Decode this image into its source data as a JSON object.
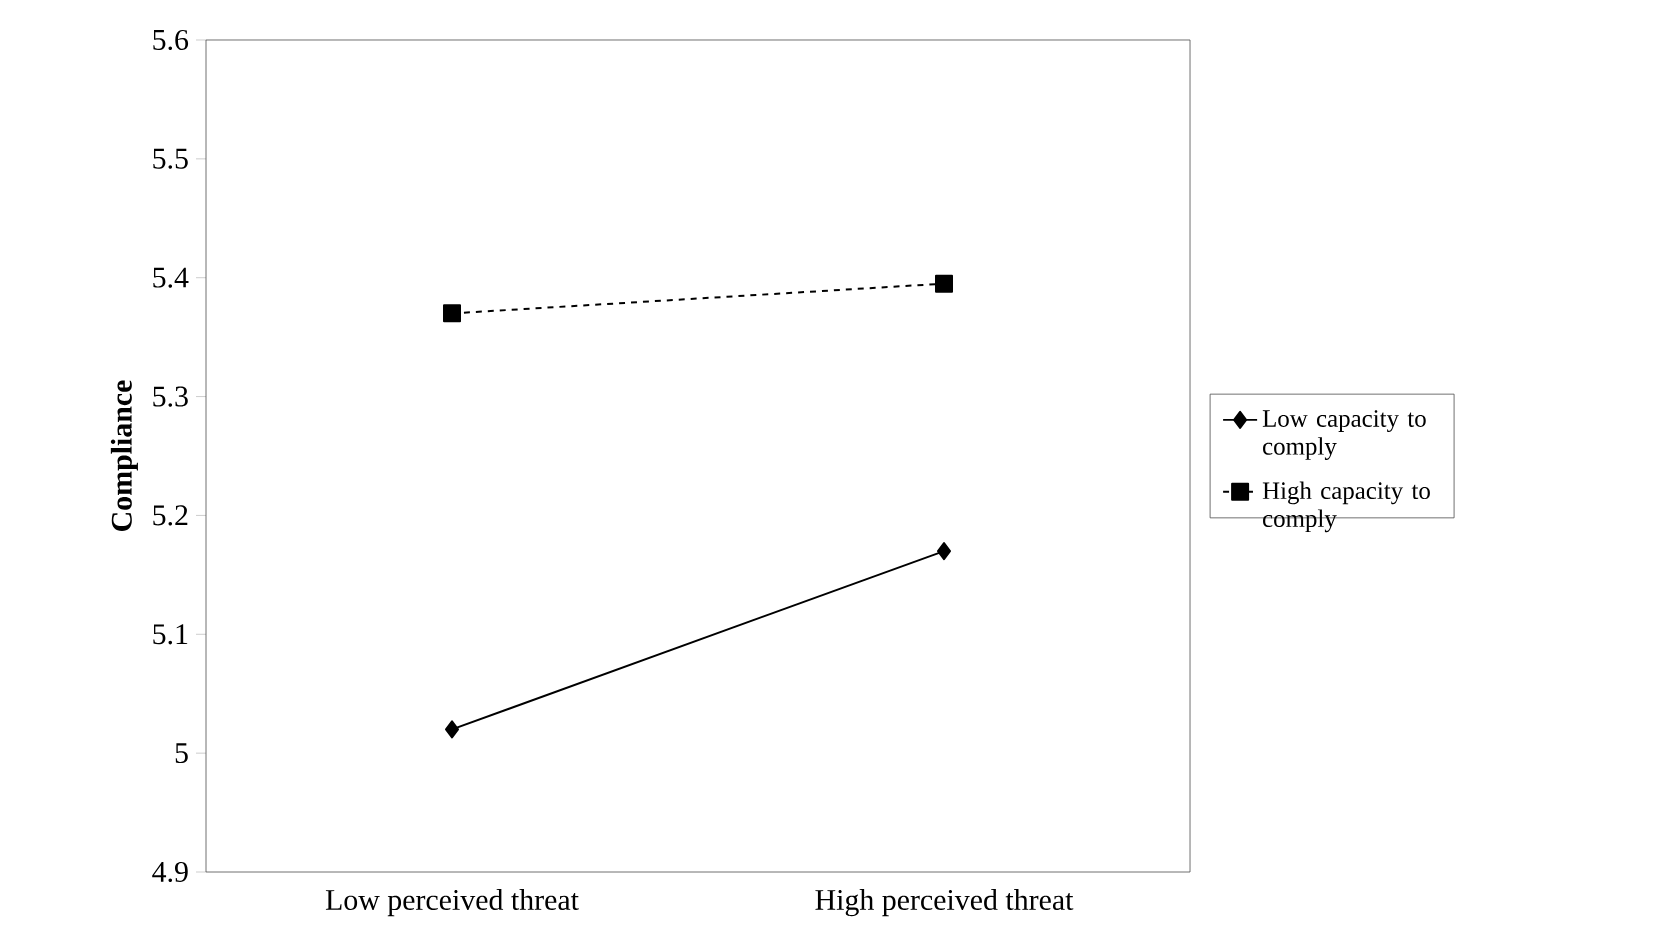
{
  "chart_data": {
    "type": "line",
    "ylabel": "**Compliance**",
    "categories": [
      "Low perceived threat",
      "High perceived threat"
    ],
    "series": [
      {
        "name": "Low capacity to comply",
        "color": "#000000",
        "values": [
          5.02,
          5.17
        ],
        "marker": "diamond",
        "line_style": "solid"
      },
      {
        "name": "High capacity to comply",
        "color": "#000000",
        "values": [
          5.37,
          5.395
        ],
        "marker": "square",
        "line_style": "dashed"
      }
    ],
    "ylim": [
      4.9,
      5.6
    ],
    "yticks": [
      4.9,
      5,
      5.1,
      5.2,
      5.3,
      5.4,
      5.5,
      5.6
    ],
    "legend": "right"
  }
}
